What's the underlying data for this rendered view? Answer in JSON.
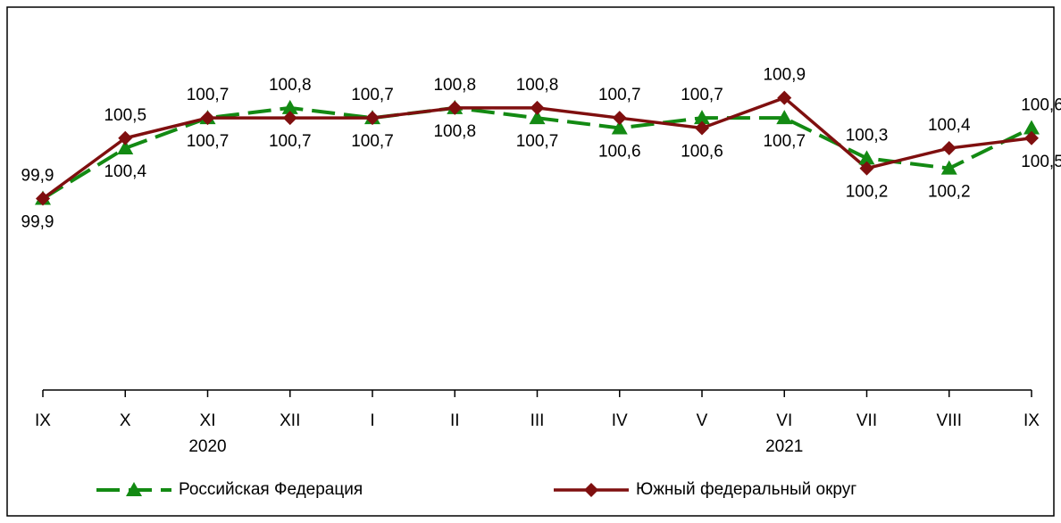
{
  "chart_data": {
    "type": "line",
    "categories": [
      "IX",
      "X",
      "XI",
      "XII",
      "I",
      "II",
      "III",
      "IV",
      "V",
      "VI",
      "VII",
      "VIII",
      "IX"
    ],
    "years": [
      null,
      null,
      "2020",
      null,
      null,
      null,
      null,
      null,
      null,
      "2021",
      null,
      null,
      null
    ],
    "ylim": [
      98,
      101.8
    ],
    "series": [
      {
        "name": "Российская Федерация",
        "color": "#138a13",
        "marker": "triangle",
        "dash": true,
        "values": [
          99.9,
          100.4,
          100.7,
          100.8,
          100.7,
          100.8,
          100.7,
          100.6,
          100.7,
          100.7,
          100.3,
          100.2,
          100.6
        ],
        "value_labels": [
          "99,9",
          "100,4",
          "100,7",
          "100,8",
          "100,7",
          "100,8",
          "100,7",
          "100,6",
          "100,7",
          "100,7",
          "100,3",
          "100,2",
          "100,6"
        ]
      },
      {
        "name": "Южный федеральный округ",
        "color": "#7f0f0f",
        "marker": "diamond",
        "dash": false,
        "values": [
          99.9,
          100.5,
          100.7,
          100.7,
          100.7,
          100.8,
          100.8,
          100.7,
          100.6,
          100.9,
          100.2,
          100.4,
          100.5
        ],
        "value_labels": [
          "99,9",
          "100,5",
          "100,7",
          "100,7",
          "100,7",
          "100,8",
          "100,8",
          "100,7",
          "100,6",
          "100,9",
          "100,2",
          "100,4",
          "100,5"
        ]
      }
    ]
  }
}
